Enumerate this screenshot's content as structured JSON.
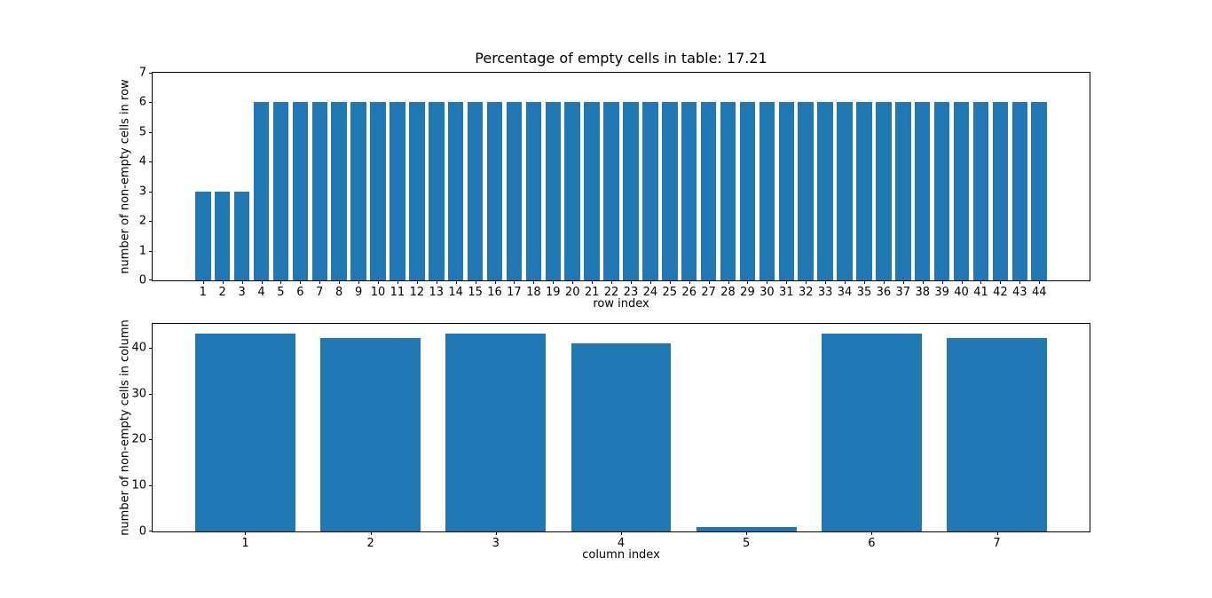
{
  "figure": {
    "background": "#ffffff",
    "bar_color": "#1f77b4",
    "axis_color": "#000000"
  },
  "chart_data": [
    {
      "type": "bar",
      "title": "Percentage of empty cells in table: 17.21",
      "xlabel": "row index",
      "ylabel": "number of non-empty cells in row",
      "categories": [
        "1",
        "2",
        "3",
        "4",
        "5",
        "6",
        "7",
        "8",
        "9",
        "10",
        "11",
        "12",
        "13",
        "14",
        "15",
        "16",
        "17",
        "18",
        "19",
        "20",
        "21",
        "22",
        "23",
        "24",
        "25",
        "26",
        "27",
        "28",
        "29",
        "30",
        "31",
        "32",
        "33",
        "34",
        "35",
        "36",
        "37",
        "38",
        "39",
        "40",
        "41",
        "42",
        "43",
        "44"
      ],
      "values": [
        3,
        3,
        3,
        6,
        6,
        6,
        6,
        6,
        6,
        6,
        6,
        6,
        6,
        6,
        6,
        6,
        6,
        6,
        6,
        6,
        6,
        6,
        6,
        6,
        6,
        6,
        6,
        6,
        6,
        6,
        6,
        6,
        6,
        6,
        6,
        6,
        6,
        6,
        6,
        6,
        6,
        6,
        6,
        6
      ],
      "ylim": [
        0,
        7
      ],
      "yticks": [
        0,
        1,
        2,
        3,
        4,
        5,
        6,
        7
      ],
      "bar_color": "#1f77b4",
      "bar_width": 0.8,
      "x_margin": 0.05,
      "grid": false,
      "legend": null
    },
    {
      "type": "bar",
      "title": "",
      "xlabel": "column index",
      "ylabel": "number of non-empty cells in column",
      "categories": [
        "1",
        "2",
        "3",
        "4",
        "5",
        "6",
        "7"
      ],
      "values": [
        43,
        42,
        43,
        41,
        1,
        43,
        42
      ],
      "ylim": [
        0,
        45.15
      ],
      "yticks": [
        0,
        10,
        20,
        30,
        40
      ],
      "bar_color": "#1f77b4",
      "bar_width": 0.8,
      "x_margin": 0.05,
      "grid": false,
      "legend": null
    }
  ]
}
